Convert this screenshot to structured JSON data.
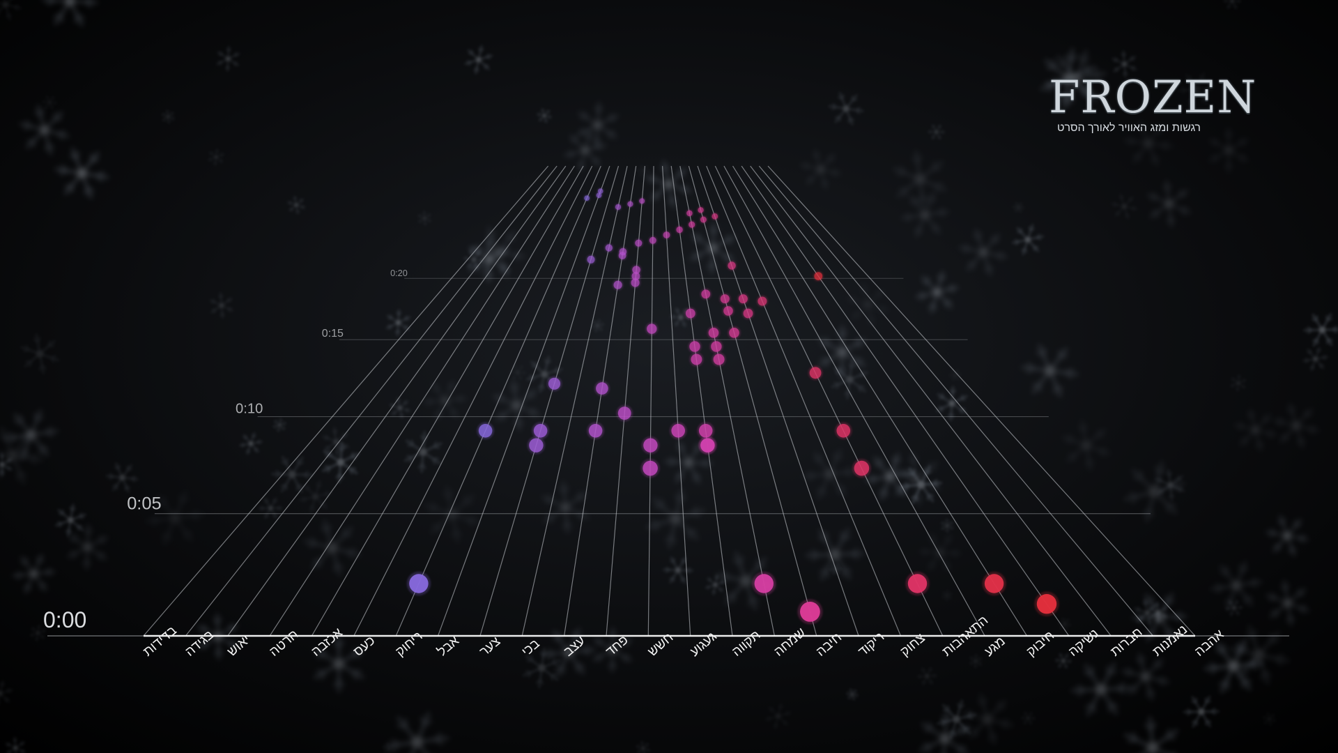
{
  "brand": {
    "logo": "FROZEN",
    "subtitle": "רגשות ומזג האוויר לאורך הסרט"
  },
  "colors": {
    "background": "#000000",
    "grid": "#cfd3d8",
    "snowflake": "#8a96a6"
  },
  "chart_data": {
    "type": "scatter",
    "perspective": true,
    "y_axis": {
      "unit": "minutes",
      "reversed_depth": true,
      "ticks": [
        {
          "value": 0,
          "label": "0:00"
        },
        {
          "value": 5,
          "label": "0:05"
        },
        {
          "value": 10,
          "label": "0:10"
        },
        {
          "value": 15,
          "label": "0:15"
        },
        {
          "value": 20,
          "label": "0:20"
        }
      ]
    },
    "categories": [
      "בדידות",
      "בגידה",
      "יאוש",
      "חרטה",
      "אכזבה",
      "כעס",
      "ריחוק",
      "אבל",
      "צער",
      "בכי",
      "עצב",
      "פחד",
      "חשש",
      "געגוע",
      "תקווה",
      "שמחה",
      "חיבה",
      "ריקוד",
      "צחוק",
      "התאהבות",
      "מגע",
      "חיבוק",
      "נשיקה",
      "חברות",
      "נאמנות",
      "אהבה"
    ],
    "category_colors": [
      "#3aa6ea",
      "#4f9ce8",
      "#5f8fe6",
      "#6a82e4",
      "#7578e2",
      "#7f70e0",
      "#8869de",
      "#9363da",
      "#9d5dd6",
      "#a857d2",
      "#b252cc",
      "#bc4dc6",
      "#c449bf",
      "#cc45b7",
      "#d141ad",
      "#d63ea2",
      "#da3b95",
      "#dd3886",
      "#df3676",
      "#e03466",
      "#e23257",
      "#e33049",
      "#e32f3d",
      "#e32f33",
      "#e02e2c",
      "#dd2d27"
    ],
    "points": [
      {
        "category": "ריחוק",
        "time": 2.0
      },
      {
        "category": "שמחה",
        "time": 2.0
      },
      {
        "category": "חיבה",
        "time": 0.9
      },
      {
        "category": "התאהבות",
        "time": 2.0
      },
      {
        "category": "חיבוק",
        "time": 2.0
      },
      {
        "category": "נשיקה",
        "time": 1.2
      },
      {
        "category": "ריחוק",
        "time": 9.2
      },
      {
        "category": "צער",
        "time": 9.2
      },
      {
        "category": "צער",
        "time": 8.4
      },
      {
        "category": "עצב",
        "time": 9.2
      },
      {
        "category": "פחד",
        "time": 10.2
      },
      {
        "category": "עצב",
        "time": 11.7
      },
      {
        "category": "חשש",
        "time": 8.4
      },
      {
        "category": "חשש",
        "time": 7.2
      },
      {
        "category": "געגוע",
        "time": 9.2
      },
      {
        "category": "תקווה",
        "time": 8.4
      },
      {
        "category": "תקווה",
        "time": 9.2
      },
      {
        "category": "תקווה",
        "time": 8.4
      },
      {
        "category": "התאהבות",
        "time": 9.2
      },
      {
        "category": "התאהבות",
        "time": 7.2
      },
      {
        "category": "התאהבות",
        "time": 12.7
      },
      {
        "category": "שמחה",
        "time": 13.6
      },
      {
        "category": "תקווה",
        "time": 13.6
      },
      {
        "category": "תקווה",
        "time": 14.5
      },
      {
        "category": "שמחה",
        "time": 14.5
      },
      {
        "category": "שמחה",
        "time": 15.5
      },
      {
        "category": "חיבה",
        "time": 15.5
      },
      {
        "category": "ריקוד",
        "time": 17.0
      },
      {
        "category": "ריקוד",
        "time": 18.2
      },
      {
        "category": "חיבה",
        "time": 17.2
      },
      {
        "category": "תקווה",
        "time": 17.0
      },
      {
        "category": "חשש",
        "time": 15.8
      },
      {
        "category": "שמחה",
        "time": 18.6
      },
      {
        "category": "חיבה",
        "time": 18.2
      },
      {
        "category": "צחוק",
        "time": 18.0
      },
      {
        "category": "נשיקה",
        "time": 20.2
      },
      {
        "category": "ריקוד",
        "time": 21.2
      },
      {
        "category": "פחד",
        "time": 20.2
      },
      {
        "category": "פחד",
        "time": 20.8
      },
      {
        "category": "עצב",
        "time": 19.4
      },
      {
        "category": "פחד",
        "time": 19.6
      },
      {
        "category": "צער",
        "time": 12.0
      },
      {
        "category": "צער",
        "time": 21.8
      },
      {
        "category": "עצב",
        "time": 22.2
      },
      {
        "category": "עצב",
        "time": 22.6
      },
      {
        "category": "בכי",
        "time": 23.0
      },
      {
        "category": "פחד",
        "time": 23.5
      },
      {
        "category": "חשש",
        "time": 23.8
      },
      {
        "category": "געגוע",
        "time": 24.4
      },
      {
        "category": "תקווה",
        "time": 25.0
      },
      {
        "category": "שמחה",
        "time": 25.6
      },
      {
        "category": "חיבה",
        "time": 26.2
      },
      {
        "category": "ריקוד",
        "time": 26.6
      },
      {
        "category": "שמחה",
        "time": 27.0
      },
      {
        "category": "חיבה",
        "time": 27.4
      },
      {
        "category": "בכי",
        "time": 27.8
      },
      {
        "category": "עצב",
        "time": 28.2
      },
      {
        "category": "פחד",
        "time": 28.6
      },
      {
        "category": "ריחוק",
        "time": 29.0
      },
      {
        "category": "אבל",
        "time": 29.4
      },
      {
        "category": "אבל",
        "time": 30.0
      }
    ]
  }
}
